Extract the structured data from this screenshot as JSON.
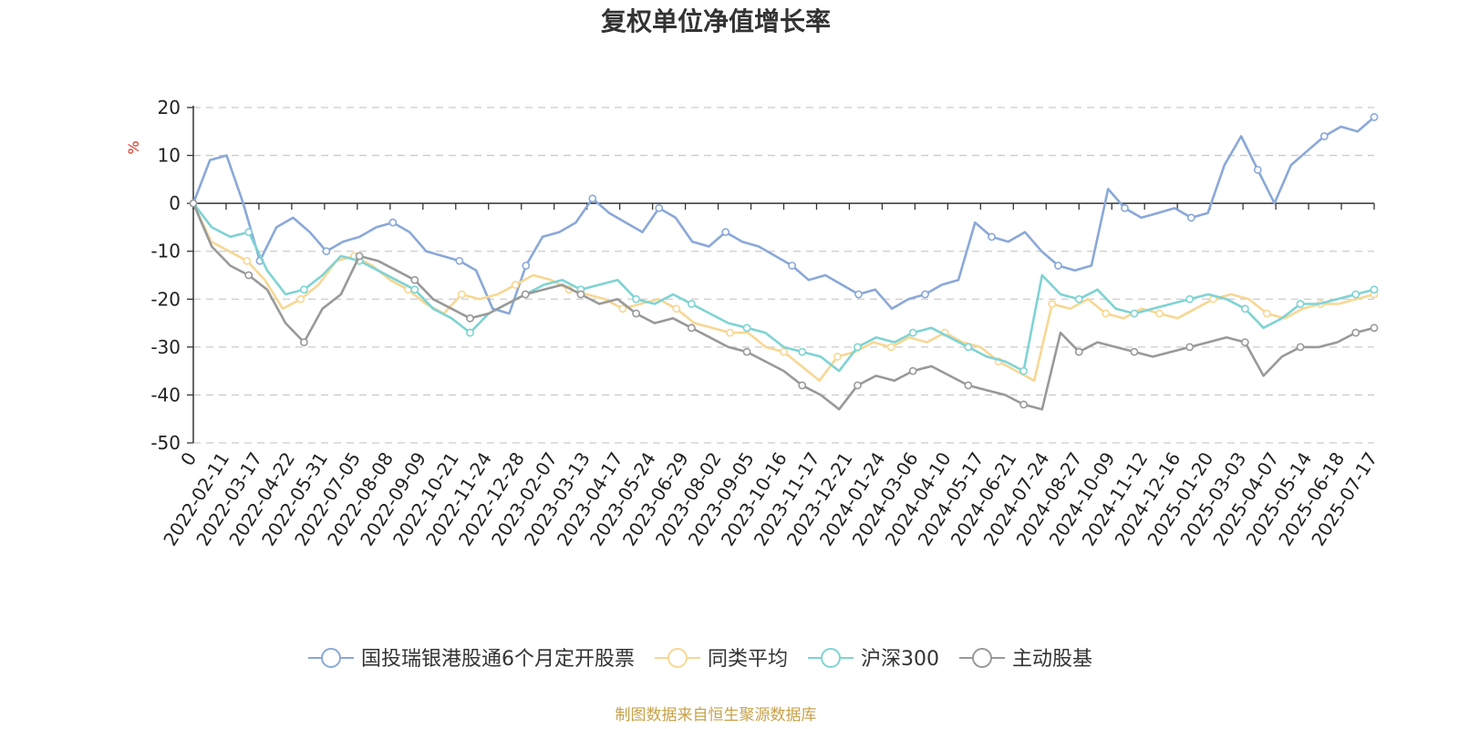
{
  "chart_data": {
    "type": "line",
    "title": "复权单位净值增长率",
    "ylabel": "%",
    "ylim": [
      -50,
      20
    ],
    "yticks": [
      20,
      10,
      0,
      -10,
      -20,
      -30,
      -40,
      -50
    ],
    "grid": true,
    "legend_position": "bottom",
    "source_note": "制图数据来自恒生聚源数据库",
    "xticks": [
      "0",
      "2022-02-11",
      "2022-03-17",
      "2022-04-22",
      "2022-05-31",
      "2022-07-05",
      "2022-08-08",
      "2022-09-09",
      "2022-10-21",
      "2022-11-24",
      "2022-12-28",
      "2023-02-07",
      "2023-03-13",
      "2023-04-17",
      "2023-05-24",
      "2023-06-29",
      "2023-08-02",
      "2023-09-05",
      "2023-10-16",
      "2023-11-17",
      "2023-12-21",
      "2024-01-24",
      "2024-03-06",
      "2024-04-10",
      "2024-05-17",
      "2024-06-21",
      "2024-07-24",
      "2024-08-27",
      "2024-10-09",
      "2024-11-12",
      "2024-12-16",
      "2025-01-20",
      "2025-03-03",
      "2025-04-07",
      "2025-05-14",
      "2025-06-18",
      "2025-07-17"
    ],
    "series": [
      {
        "name": "国投瑞银港股通6个月定开股票",
        "color": "#8aa8d8",
        "values": [
          0,
          9,
          10,
          0,
          -12,
          -5,
          -3,
          -6,
          -10,
          -8,
          -7,
          -5,
          -4,
          -6,
          -10,
          -11,
          -12,
          -14,
          -22,
          -23,
          -13,
          -7,
          -6,
          -4,
          1,
          -2,
          -4,
          -6,
          -1,
          -3,
          -8,
          -9,
          -6,
          -8,
          -9,
          -11,
          -13,
          -16,
          -15,
          -17,
          -19,
          -18,
          -22,
          -20,
          -19,
          -17,
          -16,
          -4,
          -7,
          -8,
          -6,
          -10,
          -13,
          -14,
          -13,
          3,
          -1,
          -3,
          -2,
          -1,
          -3,
          -2,
          8,
          14,
          7,
          0,
          8,
          11,
          14,
          16,
          15,
          18
        ]
      },
      {
        "name": "同类平均",
        "color": "#f7d794",
        "values": [
          0,
          -8,
          -10,
          -12,
          -16,
          -22,
          -20,
          -17,
          -12,
          -11,
          -13,
          -16,
          -18,
          -21,
          -23,
          -19,
          -20,
          -19,
          -17,
          -15,
          -16,
          -18,
          -19,
          -20,
          -22,
          -21,
          -20,
          -22,
          -25,
          -26,
          -27,
          -27,
          -30,
          -31,
          -34,
          -37,
          -32,
          -31,
          -29,
          -30,
          -28,
          -29,
          -27,
          -29,
          -30,
          -33,
          -35,
          -37,
          -21,
          -22,
          -20,
          -23,
          -24,
          -22,
          -23,
          -24,
          -22,
          -20,
          -19,
          -20,
          -23,
          -24,
          -22,
          -21,
          -21,
          -20,
          -19
        ]
      },
      {
        "name": "沪深300",
        "color": "#7fd3d3",
        "values": [
          0,
          -5,
          -7,
          -6,
          -14,
          -19,
          -18,
          -15,
          -11,
          -12,
          -14,
          -16,
          -18,
          -22,
          -24,
          -27,
          -23,
          -21,
          -19,
          -17,
          -16,
          -18,
          -17,
          -16,
          -20,
          -21,
          -19,
          -21,
          -23,
          -25,
          -26,
          -27,
          -30,
          -31,
          -32,
          -35,
          -30,
          -28,
          -29,
          -27,
          -26,
          -28,
          -30,
          -32,
          -33,
          -35,
          -15,
          -19,
          -20,
          -18,
          -22,
          -23,
          -22,
          -21,
          -20,
          -19,
          -20,
          -22,
          -26,
          -24,
          -21,
          -21,
          -20,
          -19,
          -18
        ]
      },
      {
        "name": "主动股基",
        "color": "#999999",
        "values": [
          0,
          -9,
          -13,
          -15,
          -18,
          -25,
          -29,
          -22,
          -19,
          -11,
          -12,
          -14,
          -16,
          -20,
          -22,
          -24,
          -23,
          -21,
          -19,
          -18,
          -17,
          -19,
          -21,
          -20,
          -23,
          -25,
          -24,
          -26,
          -28,
          -30,
          -31,
          -33,
          -35,
          -38,
          -40,
          -43,
          -38,
          -36,
          -37,
          -35,
          -34,
          -36,
          -38,
          -39,
          -40,
          -42,
          -43,
          -27,
          -31,
          -29,
          -30,
          -31,
          -32,
          -31,
          -30,
          -29,
          -28,
          -29,
          -36,
          -32,
          -30,
          -30,
          -29,
          -27,
          -26
        ]
      }
    ]
  }
}
